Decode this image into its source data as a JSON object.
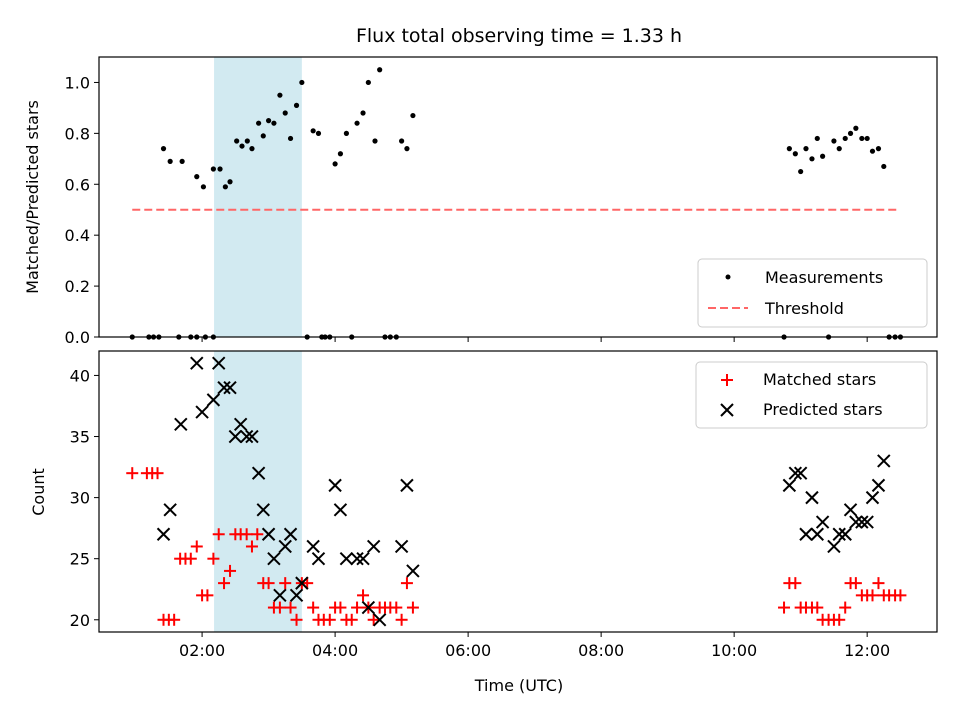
{
  "chart_data": {
    "type": "scatter",
    "title": "Flux total observing time = 1.33 h",
    "xlabel": "Time (UTC)",
    "x_tick_labels": [
      "02:00",
      "04:00",
      "06:00",
      "08:00",
      "10:00",
      "12:00"
    ],
    "x_ticks_hours": [
      2,
      4,
      6,
      8,
      10,
      12
    ],
    "xlim_hours": [
      0.45,
      13.05
    ],
    "highlight_span_hours": [
      2.18,
      3.5
    ],
    "highlight_color": "#add8e6",
    "panels": [
      {
        "id": "ratio",
        "ylabel": "Matched/Predicted stars",
        "ylim": [
          0,
          1.1
        ],
        "yticks": [
          0.0,
          0.2,
          0.4,
          0.6,
          0.8,
          1.0
        ],
        "y_tick_labels": [
          "0.0",
          "0.2",
          "0.4",
          "0.6",
          "0.8",
          "1.0"
        ],
        "legend_position": "lower-right",
        "threshold": {
          "name": "Threshold",
          "value": 0.5,
          "x_range_hours": [
            0.95,
            12.45
          ],
          "color": "#ff6666"
        },
        "series": [
          {
            "name": "Measurements",
            "marker": "dot",
            "color": "#000000",
            "points": [
              [
                0.95,
                0.0
              ],
              [
                1.2,
                0.0
              ],
              [
                1.27,
                0.0
              ],
              [
                1.35,
                0.0
              ],
              [
                1.42,
                0.74
              ],
              [
                1.52,
                0.69
              ],
              [
                1.65,
                0.0
              ],
              [
                1.7,
                0.69
              ],
              [
                1.83,
                0.0
              ],
              [
                1.92,
                0.0
              ],
              [
                1.92,
                0.63
              ],
              [
                2.02,
                0.59
              ],
              [
                2.05,
                0.0
              ],
              [
                2.17,
                0.0
              ],
              [
                2.17,
                0.66
              ],
              [
                2.27,
                0.66
              ],
              [
                2.35,
                0.59
              ],
              [
                2.42,
                0.61
              ],
              [
                2.52,
                0.77
              ],
              [
                2.6,
                0.75
              ],
              [
                2.68,
                0.77
              ],
              [
                2.75,
                0.74
              ],
              [
                2.85,
                0.84
              ],
              [
                2.92,
                0.79
              ],
              [
                3.0,
                0.85
              ],
              [
                3.08,
                0.84
              ],
              [
                3.17,
                0.95
              ],
              [
                3.25,
                0.88
              ],
              [
                3.33,
                0.78
              ],
              [
                3.42,
                0.91
              ],
              [
                3.5,
                1.0
              ],
              [
                3.58,
                0.0
              ],
              [
                3.67,
                0.81
              ],
              [
                3.75,
                0.8
              ],
              [
                3.8,
                0.0
              ],
              [
                3.85,
                0.0
              ],
              [
                3.92,
                0.0
              ],
              [
                4.0,
                0.68
              ],
              [
                4.08,
                0.72
              ],
              [
                4.17,
                0.8
              ],
              [
                4.25,
                0.0
              ],
              [
                4.33,
                0.84
              ],
              [
                4.42,
                0.88
              ],
              [
                4.5,
                1.0
              ],
              [
                4.6,
                0.77
              ],
              [
                4.67,
                1.05
              ],
              [
                4.75,
                0.0
              ],
              [
                4.83,
                0.0
              ],
              [
                4.92,
                0.0
              ],
              [
                5.0,
                0.77
              ],
              [
                5.08,
                0.74
              ],
              [
                5.17,
                0.87
              ],
              [
                10.75,
                0.0
              ],
              [
                10.83,
                0.74
              ],
              [
                10.92,
                0.72
              ],
              [
                11.0,
                0.65
              ],
              [
                11.08,
                0.74
              ],
              [
                11.17,
                0.7
              ],
              [
                11.25,
                0.78
              ],
              [
                11.33,
                0.71
              ],
              [
                11.42,
                0.0
              ],
              [
                11.5,
                0.77
              ],
              [
                11.58,
                0.74
              ],
              [
                11.67,
                0.78
              ],
              [
                11.75,
                0.8
              ],
              [
                11.83,
                0.82
              ],
              [
                11.92,
                0.78
              ],
              [
                12.0,
                0.78
              ],
              [
                12.08,
                0.73
              ],
              [
                12.17,
                0.74
              ],
              [
                12.25,
                0.67
              ],
              [
                12.33,
                0.0
              ],
              [
                12.42,
                0.0
              ],
              [
                12.5,
                0.0
              ]
            ]
          }
        ]
      },
      {
        "id": "counts",
        "ylabel": "Count",
        "ylim": [
          19,
          42
        ],
        "yticks": [
          20,
          25,
          30,
          35,
          40
        ],
        "y_tick_labels": [
          "20",
          "25",
          "30",
          "35",
          "40"
        ],
        "legend_position": "upper-right",
        "series": [
          {
            "name": "Matched stars",
            "marker": "plus",
            "color": "#ff0000",
            "points": [
              [
                0.95,
                32
              ],
              [
                1.17,
                32
              ],
              [
                1.25,
                32
              ],
              [
                1.33,
                32
              ],
              [
                1.42,
                20
              ],
              [
                1.5,
                20
              ],
              [
                1.58,
                20
              ],
              [
                1.67,
                25
              ],
              [
                1.75,
                25
              ],
              [
                1.83,
                25
              ],
              [
                1.92,
                26
              ],
              [
                2.0,
                22
              ],
              [
                2.08,
                22
              ],
              [
                2.17,
                25
              ],
              [
                2.25,
                27
              ],
              [
                2.33,
                23
              ],
              [
                2.42,
                24
              ],
              [
                2.5,
                27
              ],
              [
                2.58,
                27
              ],
              [
                2.67,
                27
              ],
              [
                2.75,
                26
              ],
              [
                2.83,
                27
              ],
              [
                2.92,
                23
              ],
              [
                3.0,
                23
              ],
              [
                3.08,
                21
              ],
              [
                3.17,
                21
              ],
              [
                3.25,
                23
              ],
              [
                3.33,
                21
              ],
              [
                3.42,
                20
              ],
              [
                3.5,
                23
              ],
              [
                3.58,
                23
              ],
              [
                3.67,
                21
              ],
              [
                3.75,
                20
              ],
              [
                3.83,
                20
              ],
              [
                3.92,
                20
              ],
              [
                4.0,
                21
              ],
              [
                4.08,
                21
              ],
              [
                4.17,
                20
              ],
              [
                4.25,
                20
              ],
              [
                4.33,
                21
              ],
              [
                4.42,
                22
              ],
              [
                4.5,
                21
              ],
              [
                4.58,
                20
              ],
              [
                4.67,
                21
              ],
              [
                4.75,
                21
              ],
              [
                4.83,
                21
              ],
              [
                4.92,
                21
              ],
              [
                5.0,
                20
              ],
              [
                5.08,
                23
              ],
              [
                5.17,
                21
              ],
              [
                10.75,
                21
              ],
              [
                10.83,
                23
              ],
              [
                10.92,
                23
              ],
              [
                11.0,
                21
              ],
              [
                11.08,
                21
              ],
              [
                11.17,
                21
              ],
              [
                11.25,
                21
              ],
              [
                11.33,
                20
              ],
              [
                11.42,
                20
              ],
              [
                11.5,
                20
              ],
              [
                11.58,
                20
              ],
              [
                11.67,
                21
              ],
              [
                11.75,
                23
              ],
              [
                11.83,
                23
              ],
              [
                11.92,
                22
              ],
              [
                12.0,
                22
              ],
              [
                12.08,
                22
              ],
              [
                12.17,
                23
              ],
              [
                12.25,
                22
              ],
              [
                12.33,
                22
              ],
              [
                12.42,
                22
              ],
              [
                12.5,
                22
              ]
            ]
          },
          {
            "name": "Predicted stars",
            "marker": "x",
            "color": "#000000",
            "points": [
              [
                1.42,
                27
              ],
              [
                1.52,
                29
              ],
              [
                1.68,
                36
              ],
              [
                1.92,
                41
              ],
              [
                2.0,
                37
              ],
              [
                2.17,
                38
              ],
              [
                2.25,
                41
              ],
              [
                2.33,
                39
              ],
              [
                2.42,
                39
              ],
              [
                2.5,
                35
              ],
              [
                2.58,
                36
              ],
              [
                2.67,
                35
              ],
              [
                2.75,
                35
              ],
              [
                2.85,
                32
              ],
              [
                2.92,
                29
              ],
              [
                3.0,
                27
              ],
              [
                3.08,
                25
              ],
              [
                3.17,
                22
              ],
              [
                3.25,
                26
              ],
              [
                3.33,
                27
              ],
              [
                3.42,
                22
              ],
              [
                3.5,
                23
              ],
              [
                3.67,
                26
              ],
              [
                3.75,
                25
              ],
              [
                4.0,
                31
              ],
              [
                4.08,
                29
              ],
              [
                4.17,
                25
              ],
              [
                4.33,
                25
              ],
              [
                4.42,
                25
              ],
              [
                4.5,
                21
              ],
              [
                4.58,
                26
              ],
              [
                4.67,
                20
              ],
              [
                5.0,
                26
              ],
              [
                5.08,
                31
              ],
              [
                5.17,
                24
              ],
              [
                10.83,
                31
              ],
              [
                10.92,
                32
              ],
              [
                11.0,
                32
              ],
              [
                11.08,
                27
              ],
              [
                11.17,
                30
              ],
              [
                11.25,
                27
              ],
              [
                11.33,
                28
              ],
              [
                11.5,
                26
              ],
              [
                11.58,
                27
              ],
              [
                11.67,
                27
              ],
              [
                11.75,
                29
              ],
              [
                11.83,
                28
              ],
              [
                11.92,
                28
              ],
              [
                12.0,
                28
              ],
              [
                12.08,
                30
              ],
              [
                12.17,
                31
              ],
              [
                12.25,
                33
              ]
            ]
          }
        ]
      }
    ]
  }
}
